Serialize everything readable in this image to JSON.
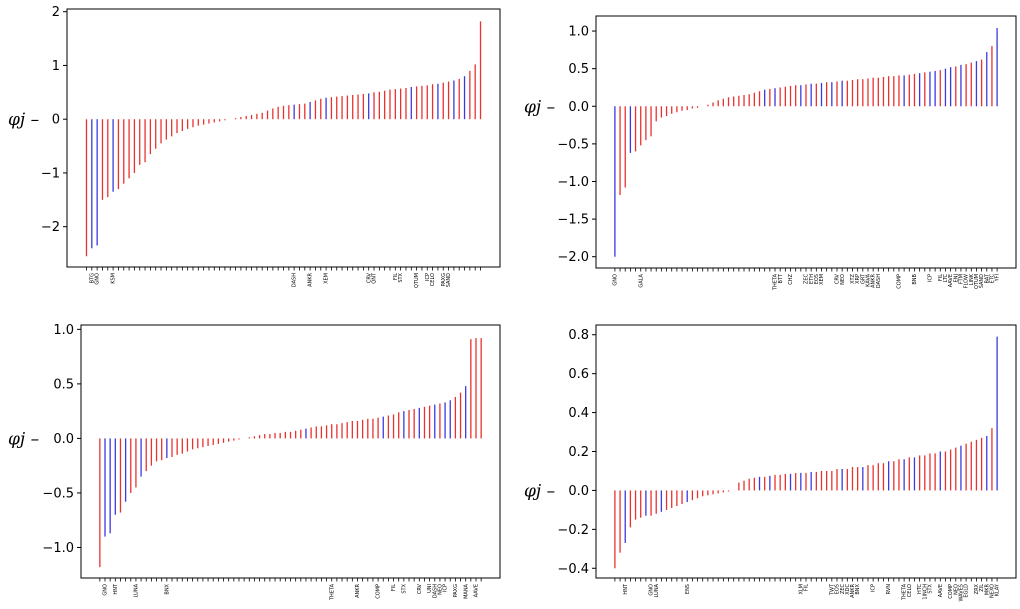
{
  "colors": {
    "positive_group": "#e8322f",
    "negative_group": "#3a3adf"
  },
  "chart_data": [
    {
      "type": "bar",
      "ylabel": "φj –",
      "ylim": [
        -2.75,
        2.05
      ],
      "yticks": [
        -2,
        -1,
        0,
        1,
        2
      ],
      "ytick_labels": [
        "−2",
        "−1",
        "0",
        "1",
        "2"
      ],
      "n": 75,
      "values": [
        -2.55,
        -2.4,
        -2.35,
        -1.5,
        -1.45,
        -1.35,
        -1.3,
        -1.2,
        -1.1,
        -1.0,
        -0.85,
        -0.8,
        -0.65,
        -0.55,
        -0.45,
        -0.38,
        -0.32,
        -0.26,
        -0.22,
        -0.18,
        -0.15,
        -0.12,
        -0.1,
        -0.08,
        -0.06,
        -0.04,
        -0.02,
        0.0,
        0.02,
        0.04,
        0.06,
        0.08,
        0.1,
        0.12,
        0.16,
        0.2,
        0.23,
        0.25,
        0.26,
        0.27,
        0.28,
        0.29,
        0.32,
        0.35,
        0.38,
        0.4,
        0.41,
        0.42,
        0.43,
        0.44,
        0.45,
        0.46,
        0.47,
        0.48,
        0.5,
        0.51,
        0.53,
        0.55,
        0.56,
        0.57,
        0.58,
        0.6,
        0.61,
        0.62,
        0.63,
        0.65,
        0.66,
        0.68,
        0.7,
        0.72,
        0.75,
        0.8,
        0.9,
        1.02,
        1.82
      ],
      "blue_indices": [
        1,
        2,
        5,
        39,
        42,
        45,
        53,
        61,
        66,
        69,
        71
      ],
      "labeled": [
        {
          "index": 1,
          "label": "BTG"
        },
        {
          "index": 2,
          "label": "GNO"
        },
        {
          "index": 5,
          "label": "KSM"
        },
        {
          "index": 39,
          "label": "DASH"
        },
        {
          "index": 42,
          "label": "ANKR"
        },
        {
          "index": 45,
          "label": "XEM"
        },
        {
          "index": 53,
          "label": "CRV"
        },
        {
          "index": 54,
          "label": "QNT"
        },
        {
          "index": 58,
          "label": "FIL"
        },
        {
          "index": 59,
          "label": "STX"
        },
        {
          "index": 62,
          "label": "QTUM"
        },
        {
          "index": 64,
          "label": "ICP"
        },
        {
          "index": 65,
          "label": "CELO"
        },
        {
          "index": 67,
          "label": "PAXG"
        },
        {
          "index": 68,
          "label": "SAND"
        }
      ]
    },
    {
      "type": "bar",
      "ylabel": "φj –",
      "ylim": [
        -2.15,
        1.2
      ],
      "yticks": [
        -2.0,
        -1.5,
        -1.0,
        -0.5,
        0.0,
        0.5,
        1.0
      ],
      "ytick_labels": [
        "−2.0",
        "−1.5",
        "−1.0",
        "−0.5",
        "0.0",
        "0.5",
        "1.0"
      ],
      "n": 75,
      "values": [
        -2.0,
        -1.18,
        -1.08,
        -0.62,
        -0.6,
        -0.52,
        -0.45,
        -0.4,
        -0.2,
        -0.15,
        -0.13,
        -0.1,
        -0.08,
        -0.06,
        -0.05,
        -0.03,
        -0.02,
        0.0,
        0.02,
        0.05,
        0.08,
        0.1,
        0.12,
        0.13,
        0.14,
        0.15,
        0.16,
        0.18,
        0.2,
        0.22,
        0.23,
        0.24,
        0.25,
        0.26,
        0.27,
        0.28,
        0.28,
        0.29,
        0.3,
        0.3,
        0.31,
        0.32,
        0.32,
        0.33,
        0.34,
        0.34,
        0.35,
        0.36,
        0.36,
        0.37,
        0.38,
        0.38,
        0.39,
        0.4,
        0.4,
        0.41,
        0.41,
        0.42,
        0.43,
        0.44,
        0.45,
        0.46,
        0.47,
        0.48,
        0.5,
        0.52,
        0.53,
        0.55,
        0.56,
        0.58,
        0.6,
        0.62,
        0.72,
        0.8,
        1.04
      ],
      "blue_indices": [
        0,
        3,
        29,
        31,
        36,
        38,
        40,
        42,
        44,
        56,
        59,
        61,
        62,
        64,
        65,
        67,
        70,
        72,
        74
      ],
      "labeled": [
        {
          "index": 0,
          "label": "GNO"
        },
        {
          "index": 5,
          "label": "GALA"
        },
        {
          "index": 31,
          "label": "THETA"
        },
        {
          "index": 32,
          "label": "BTT"
        },
        {
          "index": 34,
          "label": "CHZ"
        },
        {
          "index": 37,
          "label": "ZEC"
        },
        {
          "index": 38,
          "label": "ETH"
        },
        {
          "index": 39,
          "label": "EOS"
        },
        {
          "index": 40,
          "label": "XEM"
        },
        {
          "index": 43,
          "label": "CRV"
        },
        {
          "index": 44,
          "label": "NEO"
        },
        {
          "index": 46,
          "label": "XTZ"
        },
        {
          "index": 47,
          "label": "XRP"
        },
        {
          "index": 48,
          "label": "GRT"
        },
        {
          "index": 49,
          "label": "KAVA"
        },
        {
          "index": 50,
          "label": "ANKR"
        },
        {
          "index": 51,
          "label": "DASH"
        },
        {
          "index": 55,
          "label": "COMP"
        },
        {
          "index": 58,
          "label": "BNB"
        },
        {
          "index": 61,
          "label": "ICP"
        },
        {
          "index": 63,
          "label": "FIL"
        },
        {
          "index": 64,
          "label": "LTC"
        },
        {
          "index": 65,
          "label": "AAVE"
        },
        {
          "index": 66,
          "label": "ENJ"
        },
        {
          "index": 67,
          "label": "FTM"
        },
        {
          "index": 68,
          "label": "FLOW"
        },
        {
          "index": 69,
          "label": "LINK"
        },
        {
          "index": 70,
          "label": "QTUM"
        },
        {
          "index": 71,
          "label": "SAND"
        },
        {
          "index": 72,
          "label": "BAT"
        },
        {
          "index": 73,
          "label": "ETC"
        },
        {
          "index": 74,
          "label": "YFI"
        }
      ]
    },
    {
      "type": "bar",
      "ylabel": "φj –",
      "ylim": [
        -1.28,
        1.04
      ],
      "yticks": [
        -1.0,
        -0.5,
        0.0,
        0.5,
        1.0
      ],
      "ytick_labels": [
        "−1.0",
        "−0.5",
        "0.0",
        "0.5",
        "1.0"
      ],
      "n": 75,
      "values": [
        -1.18,
        -0.9,
        -0.87,
        -0.7,
        -0.68,
        -0.58,
        -0.5,
        -0.45,
        -0.35,
        -0.3,
        -0.25,
        -0.21,
        -0.2,
        -0.18,
        -0.17,
        -0.15,
        -0.14,
        -0.12,
        -0.1,
        -0.09,
        -0.08,
        -0.07,
        -0.06,
        -0.05,
        -0.04,
        -0.03,
        -0.02,
        -0.01,
        0.0,
        0.01,
        0.02,
        0.03,
        0.04,
        0.04,
        0.05,
        0.05,
        0.06,
        0.06,
        0.07,
        0.08,
        0.09,
        0.1,
        0.11,
        0.11,
        0.12,
        0.13,
        0.13,
        0.14,
        0.15,
        0.16,
        0.16,
        0.17,
        0.18,
        0.18,
        0.19,
        0.2,
        0.21,
        0.22,
        0.24,
        0.25,
        0.26,
        0.27,
        0.28,
        0.29,
        0.3,
        0.31,
        0.32,
        0.33,
        0.35,
        0.38,
        0.42,
        0.48,
        0.91,
        0.92,
        0.92
      ],
      "blue_indices": [
        1,
        2,
        3,
        5,
        8,
        13,
        40,
        55,
        59,
        62,
        65,
        67,
        68,
        71
      ],
      "labeled": [
        {
          "index": 1,
          "label": "GNO"
        },
        {
          "index": 3,
          "label": "HNT"
        },
        {
          "index": 7,
          "label": "LUNA"
        },
        {
          "index": 13,
          "label": "BNX"
        },
        {
          "index": 45,
          "label": "THETA"
        },
        {
          "index": 50,
          "label": "ANKR"
        },
        {
          "index": 54,
          "label": "COMP"
        },
        {
          "index": 57,
          "label": "FIL"
        },
        {
          "index": 59,
          "label": "STX"
        },
        {
          "index": 62,
          "label": "CRV"
        },
        {
          "index": 64,
          "label": "UNI"
        },
        {
          "index": 65,
          "label": "DASH"
        },
        {
          "index": 66,
          "label": "NEO"
        },
        {
          "index": 67,
          "label": "ICP"
        },
        {
          "index": 69,
          "label": "PAXG"
        },
        {
          "index": 71,
          "label": "MANA"
        },
        {
          "index": 73,
          "label": "AAVE"
        }
      ]
    },
    {
      "type": "bar",
      "ylabel": "φj –",
      "ylim": [
        -0.45,
        0.85
      ],
      "yticks": [
        -0.4,
        -0.2,
        0.0,
        0.2,
        0.4,
        0.6,
        0.8
      ],
      "ytick_labels": [
        "−0.4",
        "−0.2",
        "0.0",
        "0.2",
        "0.4",
        "0.6",
        "0.8"
      ],
      "n": 75,
      "values": [
        -0.4,
        -0.32,
        -0.27,
        -0.19,
        -0.15,
        -0.14,
        -0.13,
        -0.13,
        -0.12,
        -0.11,
        -0.1,
        -0.09,
        -0.08,
        -0.07,
        -0.06,
        -0.05,
        -0.04,
        -0.03,
        -0.025,
        -0.02,
        -0.015,
        -0.01,
        -0.005,
        0.0,
        0.04,
        0.05,
        0.06,
        0.065,
        0.07,
        0.07,
        0.075,
        0.08,
        0.08,
        0.085,
        0.085,
        0.09,
        0.09,
        0.09,
        0.095,
        0.095,
        0.1,
        0.1,
        0.1,
        0.11,
        0.11,
        0.11,
        0.12,
        0.12,
        0.12,
        0.13,
        0.13,
        0.14,
        0.14,
        0.15,
        0.15,
        0.16,
        0.16,
        0.17,
        0.17,
        0.18,
        0.18,
        0.19,
        0.19,
        0.2,
        0.2,
        0.21,
        0.22,
        0.23,
        0.24,
        0.25,
        0.26,
        0.27,
        0.28,
        0.32,
        0.79
      ],
      "blue_indices": [
        2,
        6,
        9,
        14,
        28,
        30,
        34,
        36,
        38,
        44,
        48,
        53,
        56,
        58,
        63,
        67,
        72,
        74
      ],
      "labeled": [
        {
          "index": 2,
          "label": "HNT"
        },
        {
          "index": 7,
          "label": "GNO"
        },
        {
          "index": 8,
          "label": "LUNA"
        },
        {
          "index": 14,
          "label": "ENS"
        },
        {
          "index": 36,
          "label": "XLM"
        },
        {
          "index": 37,
          "label": "FIL"
        },
        {
          "index": 42,
          "label": "TWT"
        },
        {
          "index": 43,
          "label": "EOS"
        },
        {
          "index": 44,
          "label": "ZEC"
        },
        {
          "index": 45,
          "label": "XDC"
        },
        {
          "index": 46,
          "label": "ANKR"
        },
        {
          "index": 47,
          "label": "BNX"
        },
        {
          "index": 50,
          "label": "ICP"
        },
        {
          "index": 53,
          "label": "RVN"
        },
        {
          "index": 56,
          "label": "THETA"
        },
        {
          "index": 57,
          "label": "CELO"
        },
        {
          "index": 59,
          "label": "HTC"
        },
        {
          "index": 60,
          "label": "1INCH"
        },
        {
          "index": 61,
          "label": "STX"
        },
        {
          "index": 63,
          "label": "AAVE"
        },
        {
          "index": 65,
          "label": "COMP"
        },
        {
          "index": 66,
          "label": "NEO"
        },
        {
          "index": 67,
          "label": "WAVES"
        },
        {
          "index": 68,
          "label": "EGLD"
        },
        {
          "index": 70,
          "label": "ZRX"
        },
        {
          "index": 71,
          "label": "ZIL"
        },
        {
          "index": 72,
          "label": "MKR"
        },
        {
          "index": 73,
          "label": "NEXO"
        },
        {
          "index": 74,
          "label": "KLAY"
        }
      ]
    }
  ]
}
